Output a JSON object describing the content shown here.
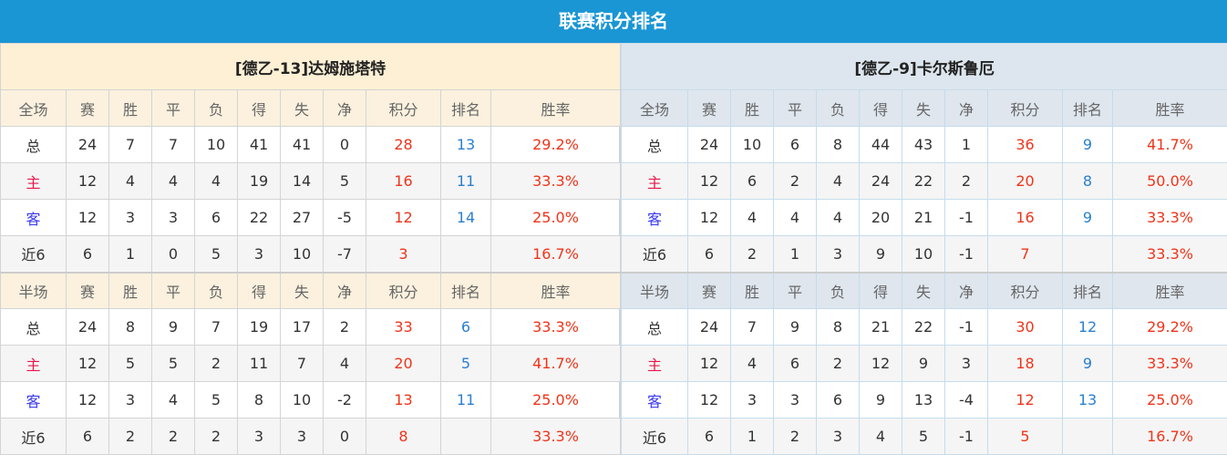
{
  "title": "联赛积分排名",
  "columns": [
    "赛",
    "胜",
    "平",
    "负",
    "得",
    "失",
    "净",
    "积分",
    "排名",
    "胜率"
  ],
  "teams": [
    {
      "name": "[德乙-13]达姆施塔特",
      "sections": [
        {
          "label": "全场",
          "rows": [
            {
              "label": "总",
              "v": [
                "24",
                "7",
                "7",
                "10",
                "41",
                "41",
                "0",
                "28",
                "13",
                "29.2%"
              ]
            },
            {
              "label": "主",
              "v": [
                "12",
                "4",
                "4",
                "4",
                "19",
                "14",
                "5",
                "16",
                "11",
                "33.3%"
              ]
            },
            {
              "label": "客",
              "v": [
                "12",
                "3",
                "3",
                "6",
                "22",
                "27",
                "-5",
                "12",
                "14",
                "25.0%"
              ]
            },
            {
              "label": "近6",
              "v": [
                "6",
                "1",
                "0",
                "5",
                "3",
                "10",
                "-7",
                "3",
                "",
                "16.7%"
              ]
            }
          ]
        },
        {
          "label": "半场",
          "rows": [
            {
              "label": "总",
              "v": [
                "24",
                "8",
                "9",
                "7",
                "19",
                "17",
                "2",
                "33",
                "6",
                "33.3%"
              ]
            },
            {
              "label": "主",
              "v": [
                "12",
                "5",
                "5",
                "2",
                "11",
                "7",
                "4",
                "20",
                "5",
                "41.7%"
              ]
            },
            {
              "label": "客",
              "v": [
                "12",
                "3",
                "4",
                "5",
                "8",
                "10",
                "-2",
                "13",
                "11",
                "25.0%"
              ]
            },
            {
              "label": "近6",
              "v": [
                "6",
                "2",
                "2",
                "2",
                "3",
                "3",
                "0",
                "8",
                "",
                "33.3%"
              ]
            }
          ]
        }
      ]
    },
    {
      "name": "[德乙-9]卡尔斯鲁厄",
      "sections": [
        {
          "label": "全场",
          "rows": [
            {
              "label": "总",
              "v": [
                "24",
                "10",
                "6",
                "8",
                "44",
                "43",
                "1",
                "36",
                "9",
                "41.7%"
              ]
            },
            {
              "label": "主",
              "v": [
                "12",
                "6",
                "2",
                "4",
                "24",
                "22",
                "2",
                "20",
                "8",
                "50.0%"
              ]
            },
            {
              "label": "客",
              "v": [
                "12",
                "4",
                "4",
                "4",
                "20",
                "21",
                "-1",
                "16",
                "9",
                "33.3%"
              ]
            },
            {
              "label": "近6",
              "v": [
                "6",
                "2",
                "1",
                "3",
                "9",
                "10",
                "-1",
                "7",
                "",
                "33.3%"
              ]
            }
          ]
        },
        {
          "label": "半场",
          "rows": [
            {
              "label": "总",
              "v": [
                "24",
                "7",
                "9",
                "8",
                "21",
                "22",
                "-1",
                "30",
                "12",
                "29.2%"
              ]
            },
            {
              "label": "主",
              "v": [
                "12",
                "4",
                "6",
                "2",
                "12",
                "9",
                "3",
                "18",
                "9",
                "33.3%"
              ]
            },
            {
              "label": "客",
              "v": [
                "12",
                "3",
                "3",
                "6",
                "9",
                "13",
                "-4",
                "12",
                "13",
                "25.0%"
              ]
            },
            {
              "label": "近6",
              "v": [
                "6",
                "1",
                "2",
                "3",
                "4",
                "5",
                "-1",
                "5",
                "",
                "16.7%"
              ]
            }
          ]
        }
      ]
    }
  ]
}
